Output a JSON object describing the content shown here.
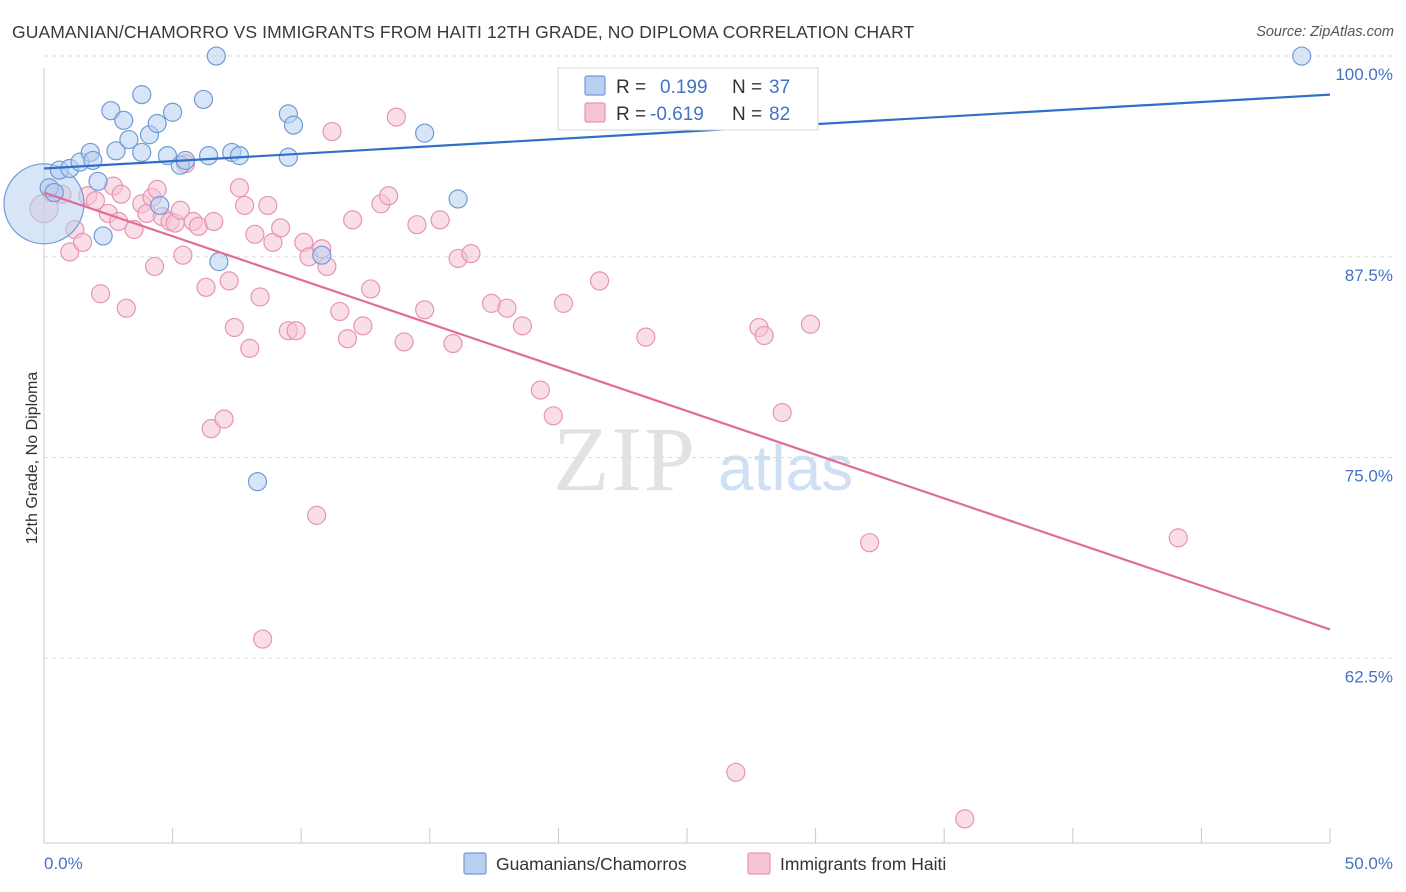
{
  "title": "GUAMANIAN/CHAMORRO VS IMMIGRANTS FROM HAITI 12TH GRADE, NO DIPLOMA CORRELATION CHART",
  "source": "Source: ZipAtlas.com",
  "watermark": {
    "zip": "ZIP",
    "atlas": "atlas"
  },
  "legend": {
    "series1": {
      "r_label": "R =",
      "r_value": "0.199",
      "n_label": "N =",
      "n_value": "37"
    },
    "series2": {
      "r_label": "R =",
      "r_value": "-0.619",
      "n_label": "N =",
      "n_value": "82"
    }
  },
  "bottom_legend": {
    "series1": "Guamanians/Chamorros",
    "series2": "Immigrants from Haiti"
  },
  "colors": {
    "blue_fill": "#b8cff0",
    "blue_stroke": "#6f9bd8",
    "blue_line": "#2f6fc8",
    "pink_fill": "#f6c3d3",
    "pink_stroke": "#e695b2",
    "pink_line": "#e06c98",
    "axis_text": "#4472c4"
  },
  "chart_data": {
    "type": "scatter",
    "title": "GUAMANIAN/CHAMORRO VS IMMIGRANTS FROM HAITI 12TH GRADE, NO DIPLOMA CORRELATION CHART",
    "xlabel": "",
    "ylabel": "12th Grade, No Diploma",
    "xlim": [
      0,
      50
    ],
    "ylim": [
      51,
      101
    ],
    "x_tick_labels": [
      "0.0%",
      "50.0%"
    ],
    "y_ticks": [
      62.5,
      75.0,
      87.5,
      100.0
    ],
    "y_tick_labels": [
      "62.5%",
      "75.0%",
      "87.5%",
      "100.0%"
    ],
    "series": [
      {
        "name": "Guamanians/Chamorros",
        "r": 0.199,
        "n": 37,
        "trend": {
          "x0": 0,
          "y0": 93.0,
          "x1": 50,
          "y1": 97.6
        },
        "points": [
          [
            0.0,
            90.8,
            40
          ],
          [
            0.2,
            91.8,
            9
          ],
          [
            0.6,
            92.9,
            9
          ],
          [
            1.0,
            93.0,
            9
          ],
          [
            1.4,
            93.4,
            9
          ],
          [
            1.8,
            94.0,
            9
          ],
          [
            1.9,
            93.5,
            9
          ],
          [
            2.1,
            92.2,
            9
          ],
          [
            2.3,
            88.8,
            9
          ],
          [
            2.6,
            96.6,
            9
          ],
          [
            2.8,
            94.1,
            9
          ],
          [
            3.1,
            96.0,
            9
          ],
          [
            3.3,
            94.8,
            9
          ],
          [
            3.8,
            97.6,
            9
          ],
          [
            3.8,
            94.0,
            9
          ],
          [
            4.1,
            95.1,
            9
          ],
          [
            4.4,
            95.8,
            9
          ],
          [
            4.5,
            90.7,
            9
          ],
          [
            4.8,
            93.8,
            9
          ],
          [
            5.0,
            96.5,
            9
          ],
          [
            5.3,
            93.2,
            9
          ],
          [
            5.5,
            93.5,
            9
          ],
          [
            6.2,
            97.3,
            9
          ],
          [
            6.4,
            93.8,
            9
          ],
          [
            6.7,
            100.0,
            9
          ],
          [
            6.8,
            87.2,
            9
          ],
          [
            7.3,
            94.0,
            9
          ],
          [
            7.6,
            93.8,
            9
          ],
          [
            8.3,
            73.5,
            9
          ],
          [
            9.5,
            96.4,
            9
          ],
          [
            9.5,
            93.7,
            9
          ],
          [
            9.7,
            95.7,
            9
          ],
          [
            10.8,
            87.6,
            9
          ],
          [
            14.8,
            95.2,
            9
          ],
          [
            16.1,
            91.1,
            9
          ],
          [
            48.9,
            100.0,
            9
          ],
          [
            0.4,
            91.5,
            9
          ]
        ]
      },
      {
        "name": "Immigrants from Haiti",
        "r": -0.619,
        "n": 82,
        "trend": {
          "x0": 0,
          "y0": 91.5,
          "x1": 50,
          "y1": 64.3
        },
        "points": [
          [
            0.0,
            90.5,
            14
          ],
          [
            0.3,
            91.5,
            9
          ],
          [
            0.7,
            91.4,
            9
          ],
          [
            1.0,
            87.8,
            9
          ],
          [
            1.2,
            89.2,
            9
          ],
          [
            1.5,
            88.4,
            9
          ],
          [
            1.7,
            91.3,
            9
          ],
          [
            2.0,
            91.0,
            9
          ],
          [
            2.2,
            85.2,
            9
          ],
          [
            2.5,
            90.2,
            9
          ],
          [
            2.7,
            91.9,
            9
          ],
          [
            2.9,
            89.7,
            9
          ],
          [
            3.0,
            91.4,
            9
          ],
          [
            3.2,
            84.3,
            9
          ],
          [
            3.5,
            89.2,
            9
          ],
          [
            3.8,
            90.8,
            9
          ],
          [
            4.0,
            90.2,
            9
          ],
          [
            4.2,
            91.2,
            9
          ],
          [
            4.4,
            91.7,
            9
          ],
          [
            4.6,
            90.0,
            9
          ],
          [
            4.9,
            89.7,
            9
          ],
          [
            5.1,
            89.6,
            9
          ],
          [
            5.3,
            90.4,
            9
          ],
          [
            5.4,
            87.6,
            9
          ],
          [
            5.5,
            93.3,
            9
          ],
          [
            5.8,
            89.7,
            9
          ],
          [
            6.0,
            89.4,
            9
          ],
          [
            6.3,
            85.6,
            9
          ],
          [
            6.5,
            76.8,
            9
          ],
          [
            6.6,
            89.7,
            9
          ],
          [
            7.0,
            77.4,
            9
          ],
          [
            7.2,
            86.0,
            9
          ],
          [
            7.4,
            83.1,
            9
          ],
          [
            7.6,
            91.8,
            9
          ],
          [
            7.8,
            90.7,
            9
          ],
          [
            8.0,
            81.8,
            9
          ],
          [
            8.2,
            88.9,
            9
          ],
          [
            8.4,
            85.0,
            9
          ],
          [
            8.7,
            90.7,
            9
          ],
          [
            8.9,
            88.4,
            9
          ],
          [
            9.2,
            89.3,
            9
          ],
          [
            9.5,
            82.9,
            9
          ],
          [
            9.8,
            82.9,
            9
          ],
          [
            10.1,
            88.4,
            9
          ],
          [
            10.3,
            87.5,
            9
          ],
          [
            10.6,
            71.4,
            9
          ],
          [
            10.8,
            88.0,
            9
          ],
          [
            11.0,
            86.9,
            9
          ],
          [
            11.2,
            95.3,
            9
          ],
          [
            11.5,
            84.1,
            9
          ],
          [
            11.8,
            82.4,
            9
          ],
          [
            12.0,
            89.8,
            9
          ],
          [
            12.4,
            83.2,
            9
          ],
          [
            12.7,
            85.5,
            9
          ],
          [
            13.1,
            90.8,
            9
          ],
          [
            13.4,
            91.3,
            9
          ],
          [
            13.7,
            96.2,
            9
          ],
          [
            14.0,
            82.2,
            9
          ],
          [
            14.5,
            89.5,
            9
          ],
          [
            14.8,
            84.2,
            9
          ],
          [
            15.4,
            89.8,
            9
          ],
          [
            15.9,
            82.1,
            9
          ],
          [
            16.1,
            87.4,
            9
          ],
          [
            16.6,
            87.7,
            9
          ],
          [
            17.4,
            84.6,
            9
          ],
          [
            18.0,
            84.3,
            9
          ],
          [
            18.6,
            83.2,
            9
          ],
          [
            19.3,
            79.2,
            9
          ],
          [
            19.8,
            77.6,
            9
          ],
          [
            20.2,
            84.6,
            9
          ],
          [
            21.6,
            86.0,
            9
          ],
          [
            23.4,
            82.5,
            9
          ],
          [
            26.9,
            55.4,
            9
          ],
          [
            27.8,
            83.1,
            9
          ],
          [
            28.0,
            82.6,
            9
          ],
          [
            28.7,
            77.8,
            9
          ],
          [
            29.8,
            83.3,
            9
          ],
          [
            32.1,
            69.7,
            9
          ],
          [
            35.8,
            52.5,
            9
          ],
          [
            44.1,
            70.0,
            9
          ],
          [
            8.5,
            63.7,
            9
          ],
          [
            4.3,
            86.9,
            9
          ]
        ]
      }
    ]
  }
}
